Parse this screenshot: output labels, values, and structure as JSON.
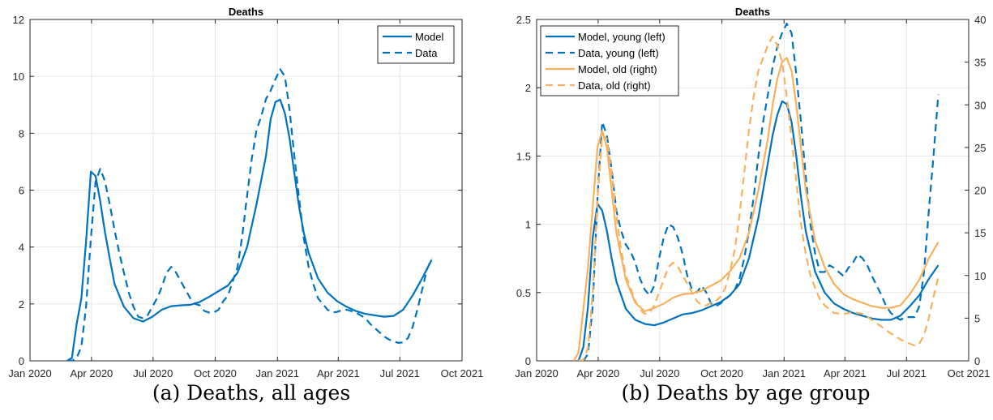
{
  "captions": {
    "a": "(a) Deaths, all ages",
    "b": "(b) Deaths by age group"
  },
  "colors": {
    "blue": "#0072BD",
    "orange": "#F7B15E",
    "axis": "#262626",
    "grid": "#E6E6E6"
  },
  "chart_data": [
    {
      "type": "line",
      "title": "Deaths",
      "xlabel": "",
      "ylabel": "",
      "x_ticks": [
        "2020-01-01",
        "2020-04-01",
        "2020-07-01",
        "2020-10-01",
        "2021-01-01",
        "2021-04-01",
        "2021-07-01",
        "2021-10-01"
      ],
      "x_tick_labels": [
        "Jan 2020",
        "Apr 2020",
        "Jul 2020",
        "Oct 2020",
        "Jan 2021",
        "Apr 2021",
        "Jul 2021",
        "Oct 2021"
      ],
      "xlim": [
        "2020-01-01",
        "2021-10-01"
      ],
      "ylim": [
        0,
        12
      ],
      "y_ticks": [
        0,
        2,
        4,
        6,
        8,
        10,
        12
      ],
      "grid": true,
      "legend": {
        "position": "top-right",
        "entries": [
          "Model",
          "Data"
        ]
      },
      "series": [
        {
          "name": "Model",
          "style": "solid",
          "color": "#0072BD",
          "x": [
            "2020-02-25",
            "2020-03-03",
            "2020-03-10",
            "2020-03-17",
            "2020-03-24",
            "2020-03-31",
            "2020-04-07",
            "2020-04-14",
            "2020-04-21",
            "2020-04-28",
            "2020-05-05",
            "2020-05-19",
            "2020-06-02",
            "2020-06-16",
            "2020-06-30",
            "2020-07-14",
            "2020-07-28",
            "2020-08-11",
            "2020-08-25",
            "2020-09-08",
            "2020-09-22",
            "2020-10-06",
            "2020-10-20",
            "2020-11-03",
            "2020-11-17",
            "2020-12-01",
            "2020-12-15",
            "2020-12-22",
            "2020-12-29",
            "2021-01-05",
            "2021-01-12",
            "2021-01-19",
            "2021-01-26",
            "2021-02-02",
            "2021-02-09",
            "2021-02-16",
            "2021-03-02",
            "2021-03-16",
            "2021-03-30",
            "2021-04-13",
            "2021-04-27",
            "2021-05-11",
            "2021-05-25",
            "2021-06-08",
            "2021-06-22",
            "2021-07-06",
            "2021-07-20",
            "2021-08-03",
            "2021-08-17"
          ],
          "values": [
            0,
            0.1,
            1.3,
            2.2,
            4.2,
            6.65,
            6.5,
            5.6,
            4.5,
            3.6,
            2.7,
            1.9,
            1.5,
            1.38,
            1.55,
            1.8,
            1.92,
            1.95,
            1.97,
            2.07,
            2.25,
            2.45,
            2.65,
            3.1,
            4.0,
            5.5,
            7.2,
            8.5,
            9.1,
            9.18,
            8.7,
            7.8,
            6.6,
            5.4,
            4.5,
            3.8,
            2.9,
            2.4,
            2.1,
            1.9,
            1.75,
            1.65,
            1.6,
            1.55,
            1.58,
            1.8,
            2.3,
            2.9,
            3.55
          ]
        },
        {
          "name": "Data",
          "style": "dashed",
          "color": "#0072BD",
          "x": [
            "2020-02-25",
            "2020-03-03",
            "2020-03-10",
            "2020-03-17",
            "2020-03-24",
            "2020-03-31",
            "2020-04-07",
            "2020-04-14",
            "2020-04-21",
            "2020-04-28",
            "2020-05-05",
            "2020-05-12",
            "2020-05-19",
            "2020-05-26",
            "2020-06-02",
            "2020-06-09",
            "2020-06-16",
            "2020-06-23",
            "2020-06-30",
            "2020-07-07",
            "2020-07-14",
            "2020-07-21",
            "2020-07-28",
            "2020-08-04",
            "2020-08-11",
            "2020-08-18",
            "2020-08-25",
            "2020-09-01",
            "2020-09-08",
            "2020-09-15",
            "2020-09-22",
            "2020-09-29",
            "2020-10-06",
            "2020-10-13",
            "2020-10-20",
            "2020-10-27",
            "2020-11-03",
            "2020-11-10",
            "2020-11-17",
            "2020-11-24",
            "2020-12-01",
            "2020-12-08",
            "2020-12-15",
            "2020-12-22",
            "2020-12-29",
            "2021-01-05",
            "2021-01-12",
            "2021-01-19",
            "2021-01-26",
            "2021-02-02",
            "2021-02-09",
            "2021-02-16",
            "2021-02-23",
            "2021-03-02",
            "2021-03-09",
            "2021-03-16",
            "2021-03-23",
            "2021-03-30",
            "2021-04-06",
            "2021-04-13",
            "2021-04-20",
            "2021-04-27",
            "2021-05-04",
            "2021-05-11",
            "2021-05-18",
            "2021-05-25",
            "2021-06-01",
            "2021-06-08",
            "2021-06-15",
            "2021-06-22",
            "2021-06-29",
            "2021-07-06",
            "2021-07-13",
            "2021-07-20",
            "2021-07-27",
            "2021-08-03",
            "2021-08-10",
            "2021-08-17"
          ],
          "values": [
            0,
            0,
            0.1,
            0.5,
            1.9,
            4.3,
            6.3,
            6.75,
            6.3,
            5.5,
            4.6,
            3.8,
            3.1,
            2.4,
            1.9,
            1.55,
            1.5,
            1.6,
            1.9,
            2.2,
            2.6,
            3.1,
            3.3,
            3.1,
            2.8,
            2.5,
            2.2,
            2.0,
            1.95,
            1.75,
            1.7,
            1.7,
            1.8,
            2.1,
            2.3,
            2.8,
            3.3,
            4.4,
            5.8,
            7.1,
            8.1,
            8.6,
            9.2,
            9.5,
            9.9,
            10.25,
            10.0,
            8.8,
            7.2,
            5.7,
            4.3,
            3.3,
            2.7,
            2.2,
            2.0,
            1.8,
            1.7,
            1.72,
            1.78,
            1.8,
            1.75,
            1.7,
            1.6,
            1.5,
            1.3,
            1.15,
            1.0,
            0.85,
            0.75,
            0.68,
            0.63,
            0.65,
            0.8,
            1.2,
            1.8,
            2.5,
            3.2,
            3.6
          ]
        }
      ]
    },
    {
      "type": "line",
      "title": "Deaths",
      "xlabel": "",
      "ylabel": "",
      "x_ticks": [
        "2020-01-01",
        "2020-04-01",
        "2020-07-01",
        "2020-10-01",
        "2021-01-01",
        "2021-04-01",
        "2021-07-01",
        "2021-10-01"
      ],
      "x_tick_labels": [
        "Jan 2020",
        "Apr 2020",
        "Jul 2020",
        "Oct 2020",
        "Jan 2021",
        "Apr 2021",
        "Jul 2021",
        "Oct 2021"
      ],
      "xlim": [
        "2020-01-01",
        "2021-10-01"
      ],
      "ylim": [
        0,
        2.5
      ],
      "y_ticks": [
        0,
        0.5,
        1,
        1.5,
        2,
        2.5
      ],
      "y_tick_labels": [
        "0",
        "0.5",
        "1",
        "1.5",
        "2",
        "2.5"
      ],
      "y2lim": [
        0,
        40
      ],
      "y2_ticks": [
        0,
        5,
        10,
        15,
        20,
        25,
        30,
        35,
        40
      ],
      "grid": true,
      "legend": {
        "position": "top-left",
        "entries": [
          "Model, young (left)",
          "Data, young (left)",
          "Model, old (right)",
          "Data, old (right)"
        ]
      },
      "series": [
        {
          "name": "Model, young (left)",
          "axis": "left",
          "style": "solid",
          "color": "#0072BD",
          "x": [
            "2020-03-03",
            "2020-03-10",
            "2020-03-17",
            "2020-03-24",
            "2020-03-31",
            "2020-04-07",
            "2020-04-14",
            "2020-04-21",
            "2020-04-28",
            "2020-05-12",
            "2020-05-26",
            "2020-06-09",
            "2020-06-23",
            "2020-07-07",
            "2020-07-21",
            "2020-08-04",
            "2020-08-18",
            "2020-09-01",
            "2020-09-15",
            "2020-09-29",
            "2020-10-13",
            "2020-10-27",
            "2020-11-10",
            "2020-11-24",
            "2020-12-08",
            "2020-12-15",
            "2020-12-22",
            "2020-12-29",
            "2021-01-05",
            "2021-01-12",
            "2021-01-19",
            "2021-01-26",
            "2021-02-02",
            "2021-02-16",
            "2021-03-02",
            "2021-03-16",
            "2021-03-30",
            "2021-04-13",
            "2021-04-27",
            "2021-05-11",
            "2021-05-25",
            "2021-06-08",
            "2021-06-22",
            "2021-07-06",
            "2021-07-20",
            "2021-08-03",
            "2021-08-17"
          ],
          "values": [
            0,
            0.1,
            0.4,
            0.9,
            1.15,
            1.1,
            0.95,
            0.75,
            0.58,
            0.38,
            0.3,
            0.27,
            0.26,
            0.28,
            0.31,
            0.34,
            0.35,
            0.37,
            0.4,
            0.43,
            0.48,
            0.56,
            0.75,
            1.05,
            1.45,
            1.65,
            1.8,
            1.9,
            1.88,
            1.75,
            1.5,
            1.2,
            0.95,
            0.65,
            0.5,
            0.42,
            0.38,
            0.35,
            0.33,
            0.31,
            0.3,
            0.3,
            0.33,
            0.4,
            0.48,
            0.6,
            0.7
          ]
        },
        {
          "name": "Data, young (left)",
          "axis": "left",
          "style": "dashed",
          "color": "#0072BD",
          "x": [
            "2020-03-10",
            "2020-03-17",
            "2020-03-24",
            "2020-03-31",
            "2020-04-07",
            "2020-04-14",
            "2020-04-21",
            "2020-04-28",
            "2020-05-05",
            "2020-05-12",
            "2020-05-19",
            "2020-05-26",
            "2020-06-02",
            "2020-06-09",
            "2020-06-16",
            "2020-06-23",
            "2020-06-30",
            "2020-07-07",
            "2020-07-14",
            "2020-07-21",
            "2020-07-28",
            "2020-08-04",
            "2020-08-11",
            "2020-08-18",
            "2020-08-25",
            "2020-09-01",
            "2020-09-08",
            "2020-09-15",
            "2020-09-22",
            "2020-09-29",
            "2020-10-06",
            "2020-10-13",
            "2020-10-20",
            "2020-10-27",
            "2020-11-03",
            "2020-11-10",
            "2020-11-17",
            "2020-11-24",
            "2020-12-01",
            "2020-12-08",
            "2020-12-15",
            "2020-12-22",
            "2020-12-29",
            "2021-01-05",
            "2021-01-12",
            "2021-01-19",
            "2021-01-26",
            "2021-02-02",
            "2021-02-09",
            "2021-02-16",
            "2021-02-23",
            "2021-03-02",
            "2021-03-09",
            "2021-03-16",
            "2021-03-23",
            "2021-03-30",
            "2021-04-06",
            "2021-04-13",
            "2021-04-20",
            "2021-04-27",
            "2021-05-04",
            "2021-05-11",
            "2021-05-18",
            "2021-05-25",
            "2021-06-01",
            "2021-06-08",
            "2021-06-15",
            "2021-06-22",
            "2021-06-29",
            "2021-07-06",
            "2021-07-13",
            "2021-07-20",
            "2021-07-27",
            "2021-08-03",
            "2021-08-10",
            "2021-08-17"
          ],
          "values": [
            0,
            0.05,
            0.4,
            1.2,
            1.75,
            1.65,
            1.4,
            1.1,
            0.95,
            0.85,
            0.8,
            0.72,
            0.6,
            0.52,
            0.48,
            0.55,
            0.75,
            0.9,
            1.0,
            0.98,
            0.9,
            0.78,
            0.62,
            0.52,
            0.5,
            0.55,
            0.5,
            0.42,
            0.4,
            0.42,
            0.45,
            0.48,
            0.52,
            0.6,
            0.75,
            0.95,
            1.2,
            1.5,
            1.75,
            1.95,
            2.15,
            2.3,
            2.4,
            2.47,
            2.4,
            2.1,
            1.75,
            1.35,
            1.0,
            0.78,
            0.65,
            0.65,
            0.7,
            0.68,
            0.65,
            0.62,
            0.68,
            0.72,
            0.78,
            0.75,
            0.7,
            0.62,
            0.55,
            0.48,
            0.4,
            0.35,
            0.32,
            0.3,
            0.32,
            0.32,
            0.32,
            0.4,
            0.65,
            1.1,
            1.5,
            1.95
          ]
        },
        {
          "name": "Model, old (right)",
          "axis": "right",
          "style": "solid",
          "color": "#F7B15E",
          "x": [
            "2020-02-25",
            "2020-03-03",
            "2020-03-10",
            "2020-03-17",
            "2020-03-24",
            "2020-03-31",
            "2020-04-07",
            "2020-04-14",
            "2020-04-21",
            "2020-04-28",
            "2020-05-12",
            "2020-05-26",
            "2020-06-09",
            "2020-06-23",
            "2020-07-07",
            "2020-07-21",
            "2020-08-04",
            "2020-08-18",
            "2020-09-01",
            "2020-09-15",
            "2020-09-29",
            "2020-10-13",
            "2020-10-27",
            "2020-11-10",
            "2020-11-24",
            "2020-12-08",
            "2020-12-15",
            "2020-12-22",
            "2020-12-29",
            "2021-01-05",
            "2021-01-12",
            "2021-01-19",
            "2021-01-26",
            "2021-02-02",
            "2021-02-16",
            "2021-03-02",
            "2021-03-16",
            "2021-03-30",
            "2021-04-13",
            "2021-04-27",
            "2021-05-11",
            "2021-05-25",
            "2021-06-08",
            "2021-06-22",
            "2021-07-06",
            "2021-07-20",
            "2021-08-03",
            "2021-08-17"
          ],
          "values": [
            0,
            1,
            6,
            11,
            18,
            25,
            27,
            25,
            20,
            15,
            9.5,
            6.8,
            5.8,
            6.2,
            6.7,
            7.4,
            7.8,
            7.9,
            8.2,
            8.8,
            9.4,
            10.5,
            12,
            15,
            20,
            26,
            30,
            33,
            35,
            35.5,
            34,
            30,
            25,
            20,
            14,
            11,
            9,
            7.8,
            7.2,
            6.8,
            6.4,
            6.2,
            6.2,
            6.5,
            7.8,
            9.5,
            12,
            13.9
          ]
        },
        {
          "name": "Data, old (right)",
          "axis": "right",
          "style": "dashed",
          "color": "#F7B15E",
          "x": [
            "2020-03-03",
            "2020-03-10",
            "2020-03-17",
            "2020-03-24",
            "2020-03-31",
            "2020-04-07",
            "2020-04-14",
            "2020-04-21",
            "2020-04-28",
            "2020-05-05",
            "2020-05-12",
            "2020-05-19",
            "2020-05-26",
            "2020-06-02",
            "2020-06-09",
            "2020-06-16",
            "2020-06-23",
            "2020-06-30",
            "2020-07-07",
            "2020-07-14",
            "2020-07-21",
            "2020-07-28",
            "2020-08-04",
            "2020-08-11",
            "2020-08-18",
            "2020-08-25",
            "2020-09-01",
            "2020-09-08",
            "2020-09-15",
            "2020-09-22",
            "2020-09-29",
            "2020-10-06",
            "2020-10-13",
            "2020-10-20",
            "2020-10-27",
            "2020-11-03",
            "2020-11-10",
            "2020-11-17",
            "2020-11-24",
            "2020-12-01",
            "2020-12-08",
            "2020-12-15",
            "2020-12-22",
            "2020-12-29",
            "2021-01-05",
            "2021-01-12",
            "2021-01-19",
            "2021-01-26",
            "2021-02-02",
            "2021-02-09",
            "2021-02-16",
            "2021-02-23",
            "2021-03-02",
            "2021-03-16",
            "2021-03-30",
            "2021-04-13",
            "2021-04-27",
            "2021-05-11",
            "2021-05-25",
            "2021-06-08",
            "2021-06-22",
            "2021-07-06",
            "2021-07-13",
            "2021-07-20",
            "2021-07-27",
            "2021-08-03",
            "2021-08-10",
            "2021-08-17"
          ],
          "values": [
            0,
            0.1,
            1.5,
            8,
            19,
            26.5,
            26,
            22,
            17,
            13,
            10,
            8.5,
            7,
            6,
            5.5,
            5.6,
            6.5,
            8,
            9.5,
            11,
            11.5,
            11,
            10,
            9,
            8,
            7,
            6.5,
            6.5,
            6.8,
            7,
            7.5,
            8.5,
            10.5,
            13,
            17,
            22,
            27,
            31,
            34,
            35.5,
            37,
            38,
            37,
            35,
            31,
            26,
            21,
            16,
            12.5,
            10,
            8.5,
            7.2,
            6.5,
            5.6,
            5.5,
            5.7,
            5.5,
            4.8,
            4.0,
            3.2,
            2.5,
            2.0,
            1.8,
            2.0,
            3.0,
            5.0,
            7.5,
            9.8
          ]
        }
      ]
    }
  ]
}
